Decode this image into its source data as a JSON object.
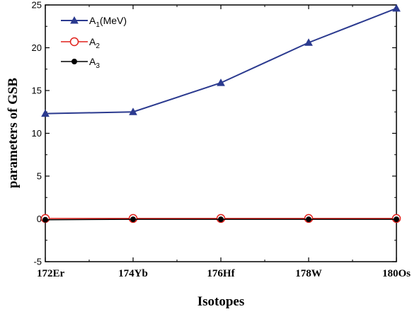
{
  "chart_data": {
    "type": "line",
    "categories": [
      "172Er",
      "174Yb",
      "176Hf",
      "178W",
      "180Os"
    ],
    "series": [
      {
        "name": "A",
        "sub": "1",
        "suffix": "(MeV)",
        "values": [
          12.3,
          12.5,
          15.9,
          20.6,
          24.6
        ],
        "color": "#2b3a8f",
        "marker": "triangle"
      },
      {
        "name": "A",
        "sub": "2",
        "suffix": "",
        "values": [
          0.05,
          0.05,
          0.05,
          0.05,
          0.05
        ],
        "color": "#e0201b",
        "marker": "open-circle"
      },
      {
        "name": "A",
        "sub": "3",
        "suffix": "",
        "values": [
          -0.1,
          -0.05,
          -0.05,
          -0.05,
          -0.05
        ],
        "color": "#000000",
        "marker": "filled-circle"
      }
    ],
    "xlabel": "Isotopes",
    "ylabel": "parameters of  GSB",
    "ylim": [
      -5,
      25
    ],
    "yticks": [
      -5,
      0,
      5,
      10,
      15,
      20,
      25
    ],
    "grid": false,
    "legend": "top-left"
  }
}
